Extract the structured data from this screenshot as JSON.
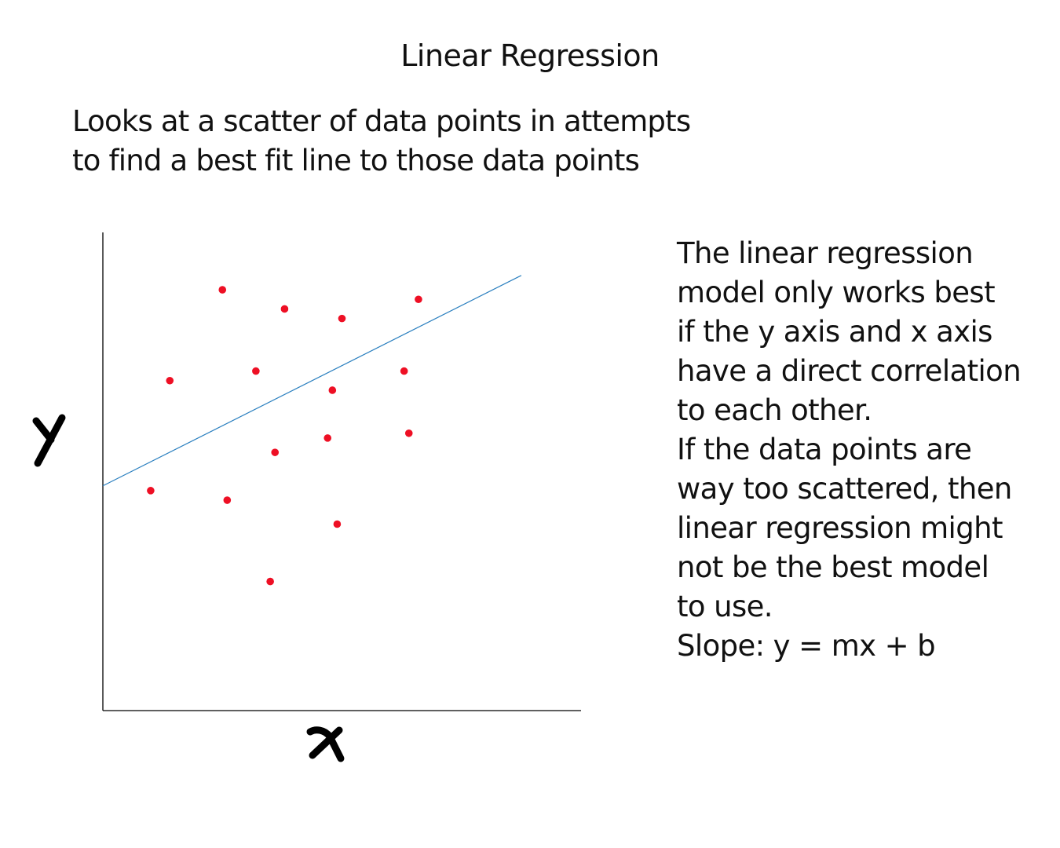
{
  "title": "Linear Regression",
  "intro_lines": [
    "Looks at a scatter of data points in attempts",
    "to find a best fit line to those data points"
  ],
  "side_lines": [
    "The linear regression",
    "model only works best",
    "if the y axis and x axis",
    "have a direct correlation",
    "to each other.",
    "If the data points are",
    "way too scattered, then",
    "linear regression might",
    "not be the best model",
    "to use.",
    "Slope: y = mx + b"
  ],
  "chart_data": {
    "type": "scatter",
    "title": "",
    "xlabel": "x",
    "ylabel": "y",
    "xlim": [
      0,
      10
    ],
    "ylim": [
      0,
      10
    ],
    "grid": false,
    "points": [
      {
        "x": 2.5,
        "y": 8.8
      },
      {
        "x": 3.8,
        "y": 8.4
      },
      {
        "x": 5.0,
        "y": 8.2
      },
      {
        "x": 6.6,
        "y": 8.6
      },
      {
        "x": 1.4,
        "y": 6.9
      },
      {
        "x": 3.2,
        "y": 7.1
      },
      {
        "x": 6.3,
        "y": 7.1
      },
      {
        "x": 4.8,
        "y": 6.7
      },
      {
        "x": 3.6,
        "y": 5.4
      },
      {
        "x": 4.7,
        "y": 5.7
      },
      {
        "x": 6.4,
        "y": 5.8
      },
      {
        "x": 1.0,
        "y": 4.6
      },
      {
        "x": 2.6,
        "y": 4.4
      },
      {
        "x": 4.9,
        "y": 3.9
      },
      {
        "x": 3.5,
        "y": 2.7
      }
    ],
    "fit_line": {
      "x": [
        0,
        8.75
      ],
      "y": [
        4.7,
        9.1
      ]
    },
    "colors": {
      "points": "#ee0f24",
      "fit_line": "#2a7fbf",
      "axes": "#000000"
    }
  }
}
